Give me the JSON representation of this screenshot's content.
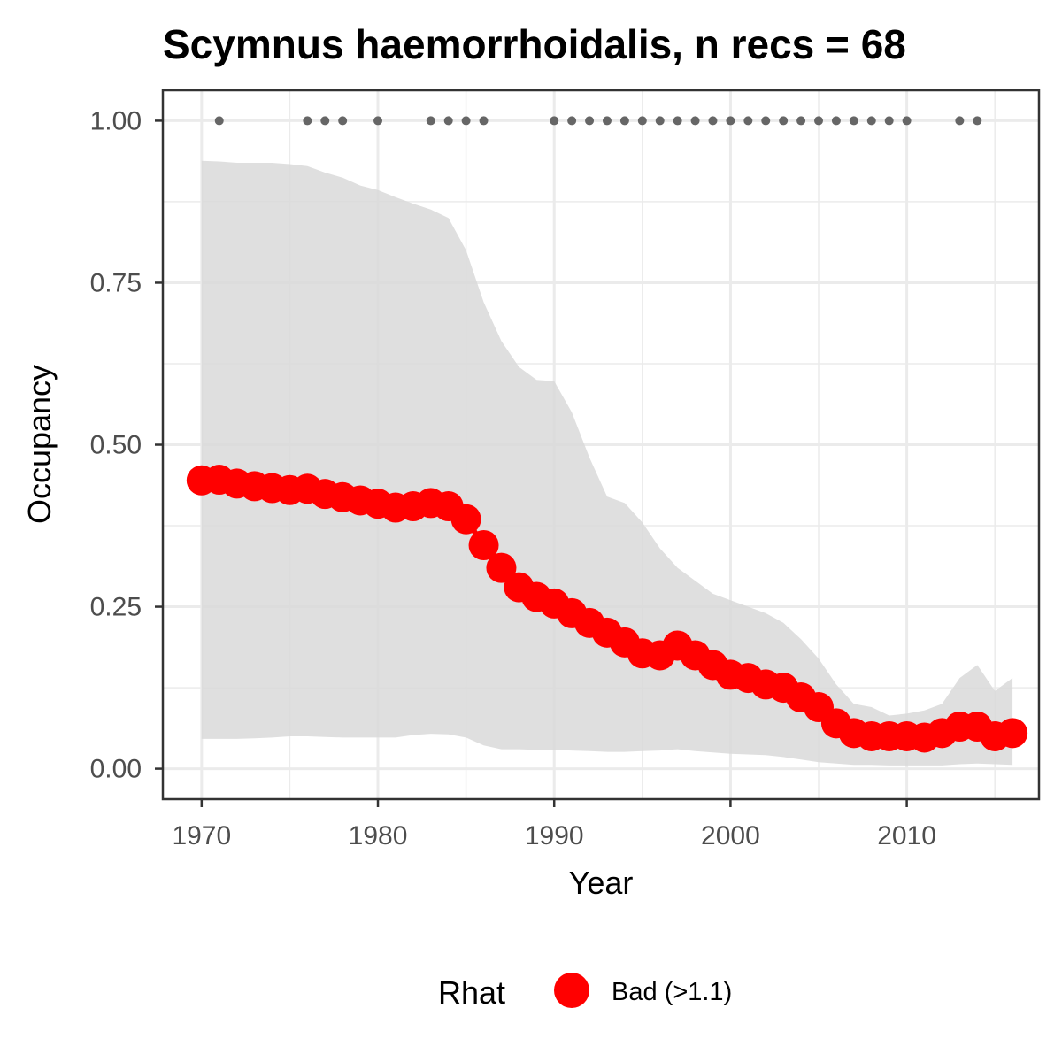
{
  "chart_data": {
    "type": "line",
    "title": "Scymnus haemorrhoidalis, n recs = 68",
    "xlabel": "Year",
    "ylabel": "Occupancy",
    "xlim": [
      1967.8,
      2017.5
    ],
    "ylim": [
      -0.047,
      1.047
    ],
    "x_ticks": [
      1970,
      1980,
      1990,
      2000,
      2010
    ],
    "x_tick_labels": [
      "1970",
      "1980",
      "1990",
      "2000",
      "2010"
    ],
    "y_ticks": [
      0,
      0.25,
      0.5,
      0.75,
      1
    ],
    "y_tick_labels": [
      "0.00",
      "0.25",
      "0.50",
      "0.75",
      "1.00"
    ],
    "grid": true,
    "legend_position": "bottom",
    "legend": {
      "title": "Rhat",
      "entries": [
        {
          "label": "Bad (>1.1)",
          "color": "#ff0000"
        }
      ]
    },
    "colors": {
      "point": "#ff0000",
      "ribbon": "#d9d9d9",
      "record": "#666666",
      "panel_border": "#333333",
      "grid": "#ebebeb"
    },
    "series": [
      {
        "name": "Bad (>1.1)",
        "x": [
          1970,
          1971,
          1972,
          1973,
          1974,
          1975,
          1976,
          1977,
          1978,
          1979,
          1980,
          1981,
          1982,
          1983,
          1984,
          1985,
          1986,
          1987,
          1988,
          1989,
          1990,
          1991,
          1992,
          1993,
          1994,
          1995,
          1996,
          1997,
          1998,
          1999,
          2000,
          2001,
          2002,
          2003,
          2004,
          2005,
          2006,
          2007,
          2008,
          2009,
          2010,
          2011,
          2012,
          2013,
          2014,
          2015,
          2016
        ],
        "values": [
          0.445,
          0.446,
          0.44,
          0.436,
          0.433,
          0.43,
          0.432,
          0.424,
          0.419,
          0.414,
          0.409,
          0.403,
          0.405,
          0.41,
          0.405,
          0.385,
          0.345,
          0.31,
          0.28,
          0.265,
          0.255,
          0.24,
          0.225,
          0.21,
          0.195,
          0.178,
          0.175,
          0.19,
          0.175,
          0.16,
          0.145,
          0.14,
          0.13,
          0.125,
          0.11,
          0.095,
          0.07,
          0.055,
          0.05,
          0.05,
          0.05,
          0.048,
          0.055,
          0.065,
          0.065,
          0.05,
          0.055
        ]
      }
    ],
    "ribbon": {
      "x": [
        1970,
        1971,
        1972,
        1973,
        1974,
        1975,
        1976,
        1977,
        1978,
        1979,
        1980,
        1981,
        1982,
        1983,
        1984,
        1985,
        1986,
        1987,
        1988,
        1989,
        1990,
        1991,
        1992,
        1993,
        1994,
        1995,
        1996,
        1997,
        1998,
        1999,
        2000,
        2001,
        2002,
        2003,
        2004,
        2005,
        2006,
        2007,
        2008,
        2009,
        2010,
        2011,
        2012,
        2013,
        2014,
        2015,
        2016
      ],
      "upper": [
        0.938,
        0.937,
        0.935,
        0.935,
        0.935,
        0.933,
        0.93,
        0.92,
        0.912,
        0.9,
        0.893,
        0.882,
        0.872,
        0.863,
        0.85,
        0.8,
        0.72,
        0.66,
        0.62,
        0.6,
        0.598,
        0.55,
        0.48,
        0.42,
        0.41,
        0.38,
        0.34,
        0.31,
        0.29,
        0.27,
        0.26,
        0.25,
        0.24,
        0.225,
        0.2,
        0.17,
        0.13,
        0.1,
        0.095,
        0.082,
        0.085,
        0.09,
        0.1,
        0.14,
        0.16,
        0.12,
        0.14
      ],
      "lower": [
        0.046,
        0.046,
        0.046,
        0.047,
        0.048,
        0.05,
        0.05,
        0.049,
        0.048,
        0.048,
        0.048,
        0.048,
        0.052,
        0.054,
        0.053,
        0.048,
        0.036,
        0.03,
        0.03,
        0.029,
        0.029,
        0.028,
        0.027,
        0.026,
        0.026,
        0.027,
        0.028,
        0.03,
        0.027,
        0.025,
        0.023,
        0.022,
        0.021,
        0.018,
        0.014,
        0.01,
        0.008,
        0.006,
        0.006,
        0.005,
        0.005,
        0.005,
        0.005,
        0.007,
        0.008,
        0.007,
        0.006
      ]
    },
    "records": {
      "y": 1.0,
      "x": [
        1971,
        1976,
        1977,
        1978,
        1980,
        1983,
        1984,
        1985,
        1986,
        1990,
        1991,
        1992,
        1993,
        1994,
        1995,
        1996,
        1997,
        1998,
        1999,
        2000,
        2001,
        2002,
        2003,
        2004,
        2005,
        2006,
        2007,
        2008,
        2009,
        2010,
        2013,
        2014
      ]
    }
  }
}
